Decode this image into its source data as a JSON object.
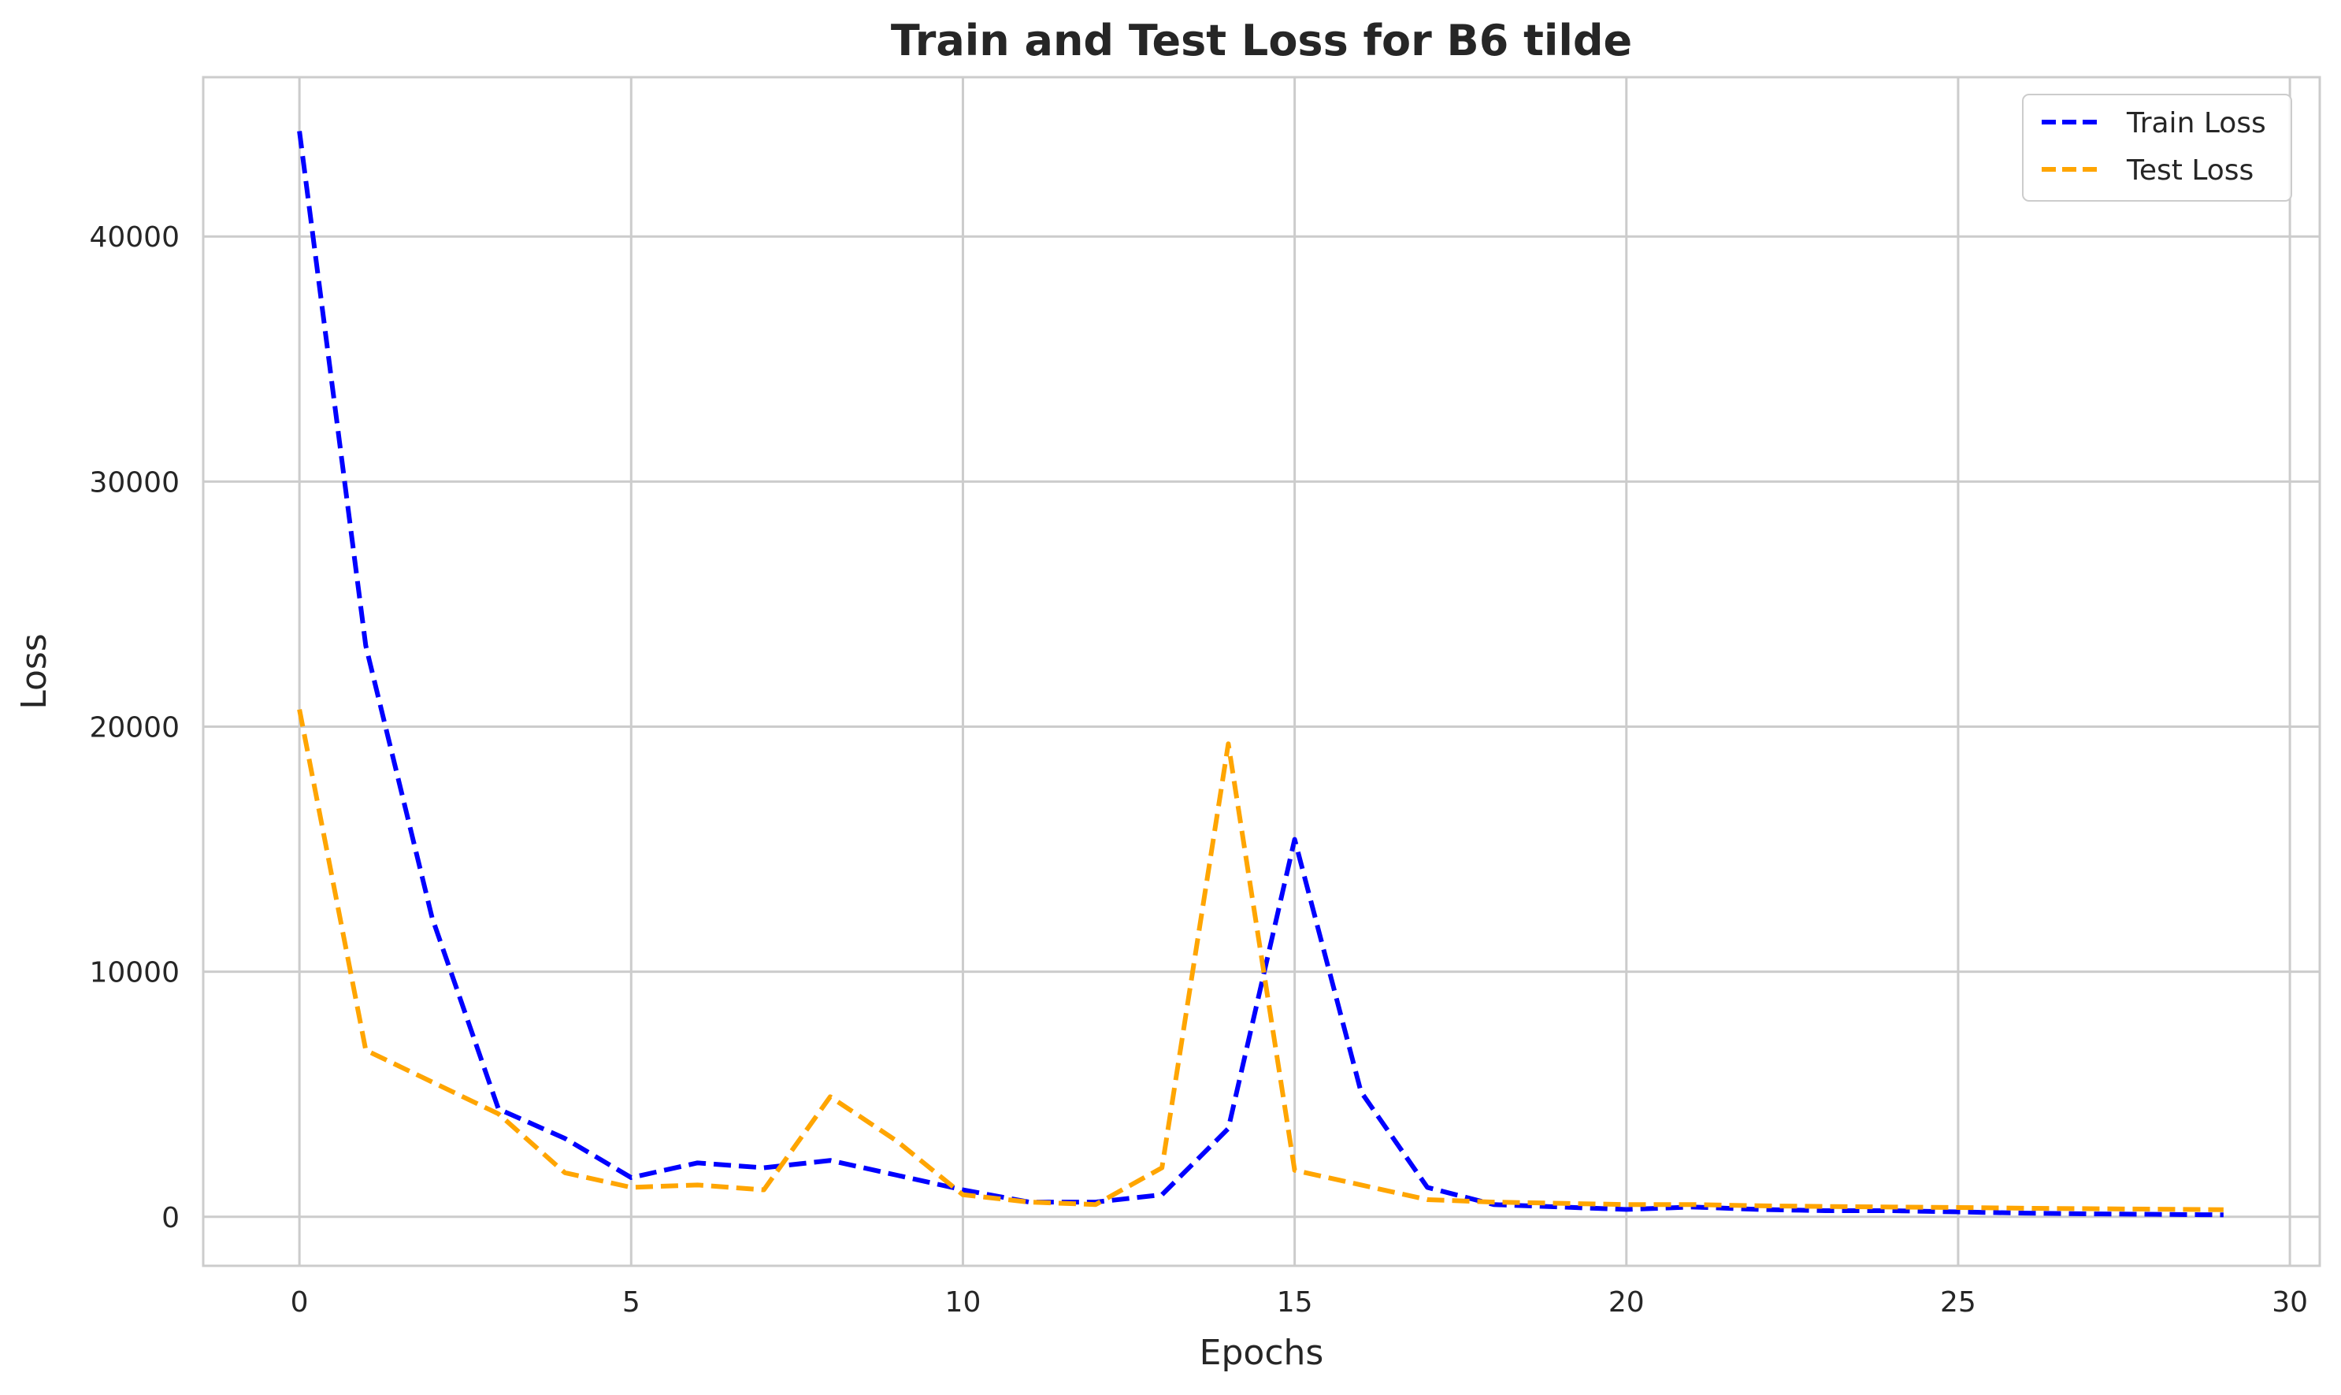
{
  "chart_data": {
    "type": "line",
    "title": "Train and Test Loss for B6 tilde",
    "xlabel": "Epochs",
    "ylabel": "Loss",
    "xlim": [
      -1.45,
      30.45
    ],
    "ylim": [
      -2000,
      46500
    ],
    "xticks": [
      0,
      5,
      10,
      15,
      20,
      25,
      30
    ],
    "yticks": [
      0,
      10000,
      20000,
      30000,
      40000
    ],
    "grid": true,
    "legend_position": "top-right",
    "line_style": "dashed",
    "x": [
      0,
      1,
      2,
      3,
      4,
      5,
      6,
      7,
      8,
      9,
      10,
      11,
      12,
      13,
      14,
      15,
      16,
      17,
      18,
      19,
      20,
      21,
      22,
      23,
      24,
      25,
      26,
      27,
      28,
      29
    ],
    "series": [
      {
        "name": "Train Loss",
        "color": "#0000ff",
        "values": [
          44300,
          23300,
          12200,
          4400,
          3200,
          1600,
          2200,
          2000,
          2300,
          1700,
          1100,
          600,
          600,
          900,
          3600,
          15400,
          5100,
          1200,
          500,
          400,
          300,
          400,
          300,
          250,
          250,
          200,
          150,
          120,
          100,
          80
        ]
      },
      {
        "name": "Test Loss",
        "color": "#ffa500",
        "values": [
          20700,
          6800,
          5500,
          4200,
          1800,
          1200,
          1300,
          1100,
          4900,
          3100,
          900,
          600,
          500,
          2000,
          19300,
          1900,
          1300,
          700,
          600,
          550,
          500,
          500,
          450,
          420,
          400,
          380,
          350,
          330,
          310,
          290
        ]
      }
    ]
  }
}
